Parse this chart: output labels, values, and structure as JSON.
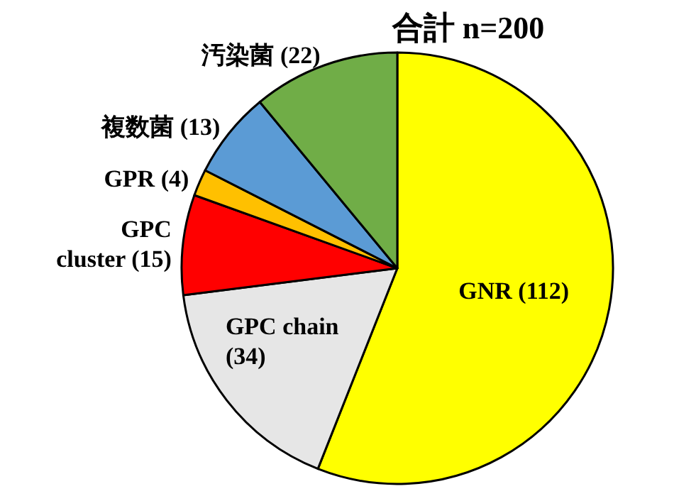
{
  "chart_data": {
    "type": "pie",
    "title": "合計 n=200",
    "categories": [
      "GNR",
      "GPC chain",
      "GPC cluster",
      "GPR",
      "複数菌",
      "汚染菌"
    ],
    "values": [
      112,
      34,
      15,
      4,
      13,
      22
    ],
    "value_labels": [
      "(112)",
      "(34)",
      "(15)",
      "(4)",
      "(13)",
      "(22)"
    ],
    "colors": [
      "#ffff00",
      "#e6e6e6",
      "#ff0000",
      "#ffc000",
      "#5b9bd5",
      "#70ad47"
    ]
  }
}
